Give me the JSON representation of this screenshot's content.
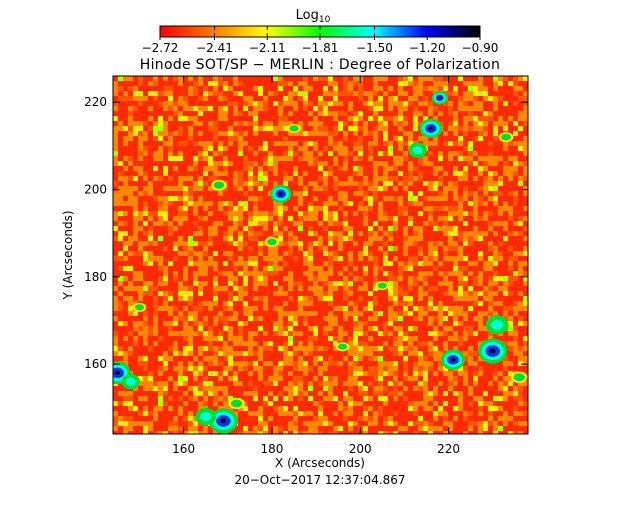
{
  "colorbar": {
    "label_main": "Log",
    "label_sub": "10",
    "ticks": [
      "−2.72",
      "−2.41",
      "−2.11",
      "−1.81",
      "−1.50",
      "−1.20",
      "−0.90"
    ],
    "values": [
      -2.72,
      -2.41,
      -2.11,
      -1.81,
      -1.5,
      -1.2,
      -0.9
    ],
    "colors": [
      "#ff0000",
      "#ff7a00",
      "#ffff00",
      "#00ff00",
      "#00ffff",
      "#0000ff",
      "#000000"
    ]
  },
  "title": "Hinode SOT/SP − MERLIN : Degree of Polarization",
  "x_axis": {
    "label": "X (Arcseconds)",
    "tick_labels": [
      "160",
      "180",
      "200",
      "220"
    ],
    "tick_values": [
      160,
      180,
      200,
      220
    ],
    "range": [
      144,
      238
    ]
  },
  "y_axis": {
    "label": "Y (Arcseconds)",
    "tick_labels": [
      "160",
      "180",
      "200",
      "220"
    ],
    "tick_values": [
      160,
      180,
      200,
      220
    ],
    "range": [
      144,
      226
    ]
  },
  "timestamp": "20−Oct−2017 12:37:04.867",
  "image_colors": {
    "background": "#ff2a00",
    "mid": "#ff8800",
    "high": "#ffee00",
    "green": "#00dd33",
    "cyan": "#00ffdd",
    "blue": "#1133ee",
    "dark": "#000022"
  },
  "features": [
    {
      "x": 182,
      "y": 199,
      "kind": "blue",
      "size": 1.6
    },
    {
      "x": 216,
      "y": 214,
      "kind": "blue",
      "size": 1.7
    },
    {
      "x": 218,
      "y": 221,
      "kind": "blue",
      "size": 1.2
    },
    {
      "x": 213,
      "y": 209,
      "kind": "cyan",
      "size": 1.6
    },
    {
      "x": 233,
      "y": 212,
      "kind": "green",
      "size": 1.4
    },
    {
      "x": 230,
      "y": 163,
      "kind": "blue",
      "size": 2.2
    },
    {
      "x": 221,
      "y": 161,
      "kind": "blue",
      "size": 1.8
    },
    {
      "x": 231,
      "y": 169,
      "kind": "cyan",
      "size": 2.0
    },
    {
      "x": 236,
      "y": 157,
      "kind": "green",
      "size": 1.6
    },
    {
      "x": 145,
      "y": 158,
      "kind": "blue",
      "size": 2.0
    },
    {
      "x": 148,
      "y": 156,
      "kind": "cyan",
      "size": 1.6
    },
    {
      "x": 169,
      "y": 147,
      "kind": "blue",
      "size": 2.2
    },
    {
      "x": 165,
      "y": 148,
      "kind": "cyan",
      "size": 1.8
    },
    {
      "x": 172,
      "y": 151,
      "kind": "green",
      "size": 1.6
    },
    {
      "x": 168,
      "y": 201,
      "kind": "green",
      "size": 1.5
    },
    {
      "x": 185,
      "y": 214,
      "kind": "green",
      "size": 1.3
    },
    {
      "x": 180,
      "y": 188,
      "kind": "green",
      "size": 1.4
    },
    {
      "x": 196,
      "y": 164,
      "kind": "green",
      "size": 1.3
    },
    {
      "x": 205,
      "y": 178,
      "kind": "green",
      "size": 1.3
    },
    {
      "x": 150,
      "y": 173,
      "kind": "green",
      "size": 1.3
    }
  ]
}
